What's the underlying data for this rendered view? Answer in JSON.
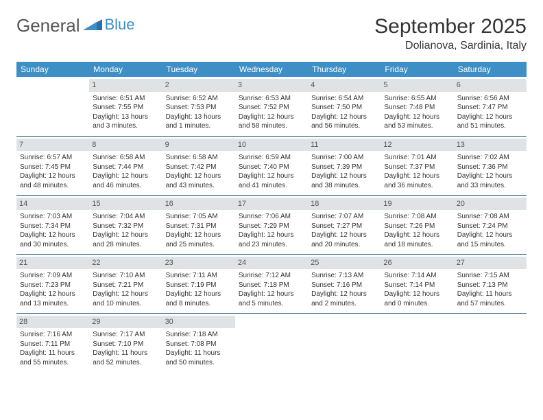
{
  "logo": {
    "text1": "General",
    "text2": "Blue"
  },
  "title": "September 2025",
  "location": "Dolianova, Sardinia, Italy",
  "header_bg": "#3d8fc6",
  "daynum_bg": "#dfe3e6",
  "row_border": "#2a5a7a",
  "weekdays": [
    "Sunday",
    "Monday",
    "Tuesday",
    "Wednesday",
    "Thursday",
    "Friday",
    "Saturday"
  ],
  "start_offset": 1,
  "days": [
    {
      "n": 1,
      "sr": "6:51 AM",
      "ss": "7:55 PM",
      "dl": "13 hours and 3 minutes."
    },
    {
      "n": 2,
      "sr": "6:52 AM",
      "ss": "7:53 PM",
      "dl": "13 hours and 1 minutes."
    },
    {
      "n": 3,
      "sr": "6:53 AM",
      "ss": "7:52 PM",
      "dl": "12 hours and 58 minutes."
    },
    {
      "n": 4,
      "sr": "6:54 AM",
      "ss": "7:50 PM",
      "dl": "12 hours and 56 minutes."
    },
    {
      "n": 5,
      "sr": "6:55 AM",
      "ss": "7:48 PM",
      "dl": "12 hours and 53 minutes."
    },
    {
      "n": 6,
      "sr": "6:56 AM",
      "ss": "7:47 PM",
      "dl": "12 hours and 51 minutes."
    },
    {
      "n": 7,
      "sr": "6:57 AM",
      "ss": "7:45 PM",
      "dl": "12 hours and 48 minutes."
    },
    {
      "n": 8,
      "sr": "6:58 AM",
      "ss": "7:44 PM",
      "dl": "12 hours and 46 minutes."
    },
    {
      "n": 9,
      "sr": "6:58 AM",
      "ss": "7:42 PM",
      "dl": "12 hours and 43 minutes."
    },
    {
      "n": 10,
      "sr": "6:59 AM",
      "ss": "7:40 PM",
      "dl": "12 hours and 41 minutes."
    },
    {
      "n": 11,
      "sr": "7:00 AM",
      "ss": "7:39 PM",
      "dl": "12 hours and 38 minutes."
    },
    {
      "n": 12,
      "sr": "7:01 AM",
      "ss": "7:37 PM",
      "dl": "12 hours and 36 minutes."
    },
    {
      "n": 13,
      "sr": "7:02 AM",
      "ss": "7:36 PM",
      "dl": "12 hours and 33 minutes."
    },
    {
      "n": 14,
      "sr": "7:03 AM",
      "ss": "7:34 PM",
      "dl": "12 hours and 30 minutes."
    },
    {
      "n": 15,
      "sr": "7:04 AM",
      "ss": "7:32 PM",
      "dl": "12 hours and 28 minutes."
    },
    {
      "n": 16,
      "sr": "7:05 AM",
      "ss": "7:31 PM",
      "dl": "12 hours and 25 minutes."
    },
    {
      "n": 17,
      "sr": "7:06 AM",
      "ss": "7:29 PM",
      "dl": "12 hours and 23 minutes."
    },
    {
      "n": 18,
      "sr": "7:07 AM",
      "ss": "7:27 PM",
      "dl": "12 hours and 20 minutes."
    },
    {
      "n": 19,
      "sr": "7:08 AM",
      "ss": "7:26 PM",
      "dl": "12 hours and 18 minutes."
    },
    {
      "n": 20,
      "sr": "7:08 AM",
      "ss": "7:24 PM",
      "dl": "12 hours and 15 minutes."
    },
    {
      "n": 21,
      "sr": "7:09 AM",
      "ss": "7:23 PM",
      "dl": "12 hours and 13 minutes."
    },
    {
      "n": 22,
      "sr": "7:10 AM",
      "ss": "7:21 PM",
      "dl": "12 hours and 10 minutes."
    },
    {
      "n": 23,
      "sr": "7:11 AM",
      "ss": "7:19 PM",
      "dl": "12 hours and 8 minutes."
    },
    {
      "n": 24,
      "sr": "7:12 AM",
      "ss": "7:18 PM",
      "dl": "12 hours and 5 minutes."
    },
    {
      "n": 25,
      "sr": "7:13 AM",
      "ss": "7:16 PM",
      "dl": "12 hours and 2 minutes."
    },
    {
      "n": 26,
      "sr": "7:14 AM",
      "ss": "7:14 PM",
      "dl": "12 hours and 0 minutes."
    },
    {
      "n": 27,
      "sr": "7:15 AM",
      "ss": "7:13 PM",
      "dl": "11 hours and 57 minutes."
    },
    {
      "n": 28,
      "sr": "7:16 AM",
      "ss": "7:11 PM",
      "dl": "11 hours and 55 minutes."
    },
    {
      "n": 29,
      "sr": "7:17 AM",
      "ss": "7:10 PM",
      "dl": "11 hours and 52 minutes."
    },
    {
      "n": 30,
      "sr": "7:18 AM",
      "ss": "7:08 PM",
      "dl": "11 hours and 50 minutes."
    }
  ],
  "labels": {
    "sunrise": "Sunrise:",
    "sunset": "Sunset:",
    "daylight": "Daylight:"
  }
}
